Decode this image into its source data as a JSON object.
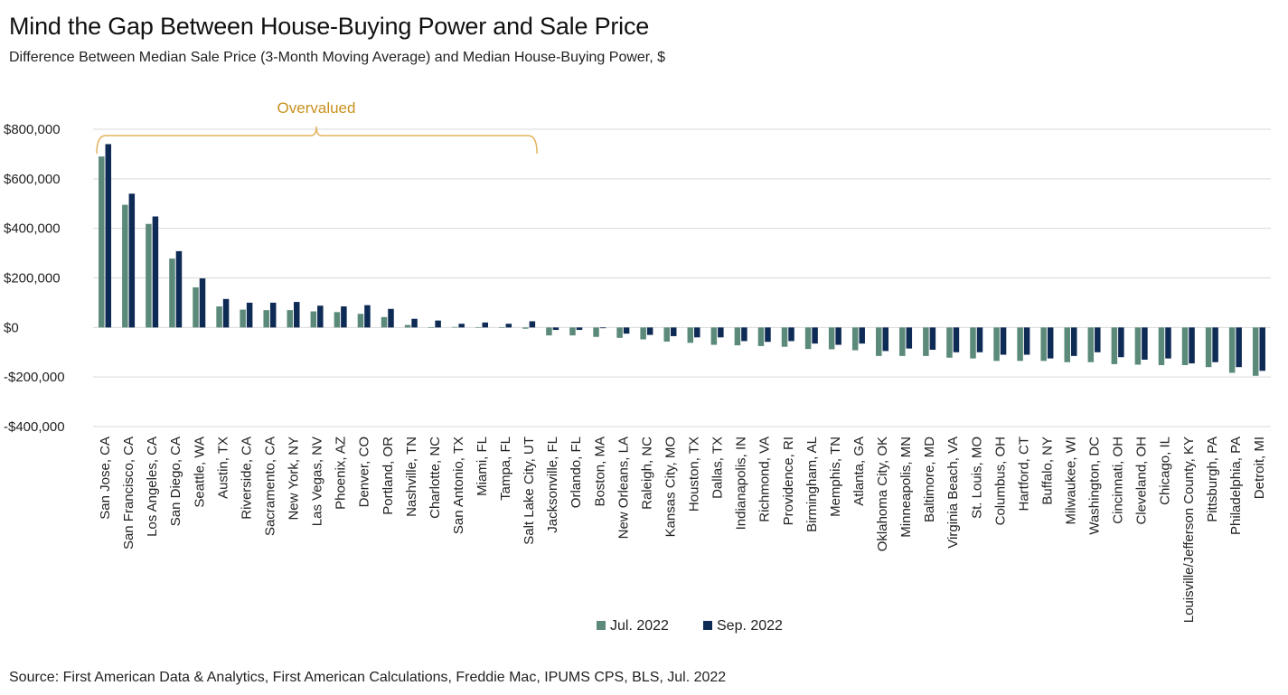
{
  "title": "Mind the Gap Between House-Buying Power and Sale Price",
  "subtitle": "Difference Between Median Sale Price (3-Month Moving Average) and Median House-Buying Power, $",
  "source": "Source: First American Data & Analytics, First American Calculations, Freddie Mac, IPUMS CPS, BLS, Jul. 2022",
  "annotation": "Overvalued",
  "colors": {
    "jul": "#5b8a7a",
    "sep": "#0e2b55",
    "grid": "#d9d9d9",
    "bracket": "#e2b35a"
  },
  "chart_data": {
    "type": "bar",
    "ylim": [
      -400000,
      800000
    ],
    "yticks": [
      800000,
      600000,
      400000,
      200000,
      0,
      -200000,
      -400000
    ],
    "ytick_labels": [
      "$800,000",
      "$600,000",
      "$400,000",
      "$200,000",
      "$0",
      "-$200,000",
      "-$400,000"
    ],
    "grid": true,
    "legend_position": "bottom",
    "categories": [
      "San Jose, CA",
      "San Francisco, CA",
      "Los Angeles, CA",
      "San Diego, CA",
      "Seattle, WA",
      "Austin, TX",
      "Riverside, CA",
      "Sacramento, CA",
      "New York, NY",
      "Las Vegas, NV",
      "Phoenix, AZ",
      "Denver, CO",
      "Portland, OR",
      "Nashville, TN",
      "Charlotte, NC",
      "San Antonio, TX",
      "Miami, FL",
      "Tampa, FL",
      "Salt Lake City, UT",
      "Jacksonville, FL",
      "Orlando, FL",
      "Boston, MA",
      "New Orleans, LA",
      "Raleigh, NC",
      "Kansas City, MO",
      "Houston, TX",
      "Dallas, TX",
      "Indianapolis, IN",
      "Richmond, VA",
      "Providence, RI",
      "Birmingham, AL",
      "Memphis, TN",
      "Atlanta, GA",
      "Oklahoma City, OK",
      "Minneapolis, MN",
      "Baltimore, MD",
      "Virginia Beach, VA",
      "St. Louis, MO",
      "Columbus, OH",
      "Hartford, CT",
      "Buffalo, NY",
      "Milwaukee, WI",
      "Washington, DC",
      "Cincinnati, OH",
      "Cleveland, OH",
      "Chicago, IL",
      "Louisville/Jefferson County, KY",
      "Pittsburgh, PA",
      "Philadelphia, PA",
      "Detroit, MI"
    ],
    "series": [
      {
        "name": "Jul. 2022",
        "values": [
          690000,
          495000,
          418000,
          278000,
          162000,
          85000,
          72000,
          70000,
          70000,
          65000,
          62000,
          55000,
          42000,
          10000,
          0,
          2000,
          1000,
          1000,
          -5000,
          -32000,
          -32000,
          -38000,
          -42000,
          -48000,
          -57000,
          -62000,
          -70000,
          -72000,
          -75000,
          -78000,
          -87000,
          -88000,
          -92000,
          -115000,
          -115000,
          -115000,
          -122000,
          -125000,
          -135000,
          -135000,
          -135000,
          -140000,
          -140000,
          -148000,
          -150000,
          -152000,
          -152000,
          -160000,
          -183000,
          -195000
        ]
      },
      {
        "name": "Sep. 2022",
        "values": [
          740000,
          540000,
          448000,
          308000,
          198000,
          115000,
          100000,
          100000,
          103000,
          88000,
          85000,
          90000,
          75000,
          35000,
          28000,
          15000,
          20000,
          15000,
          25000,
          -10000,
          -10000,
          -3000,
          -25000,
          -30000,
          -35000,
          -40000,
          -40000,
          -55000,
          -58000,
          -55000,
          -65000,
          -70000,
          -65000,
          -95000,
          -85000,
          -90000,
          -100000,
          -100000,
          -110000,
          -110000,
          -125000,
          -115000,
          -100000,
          -120000,
          -130000,
          -125000,
          -145000,
          -140000,
          -160000,
          -175000
        ]
      }
    ]
  }
}
